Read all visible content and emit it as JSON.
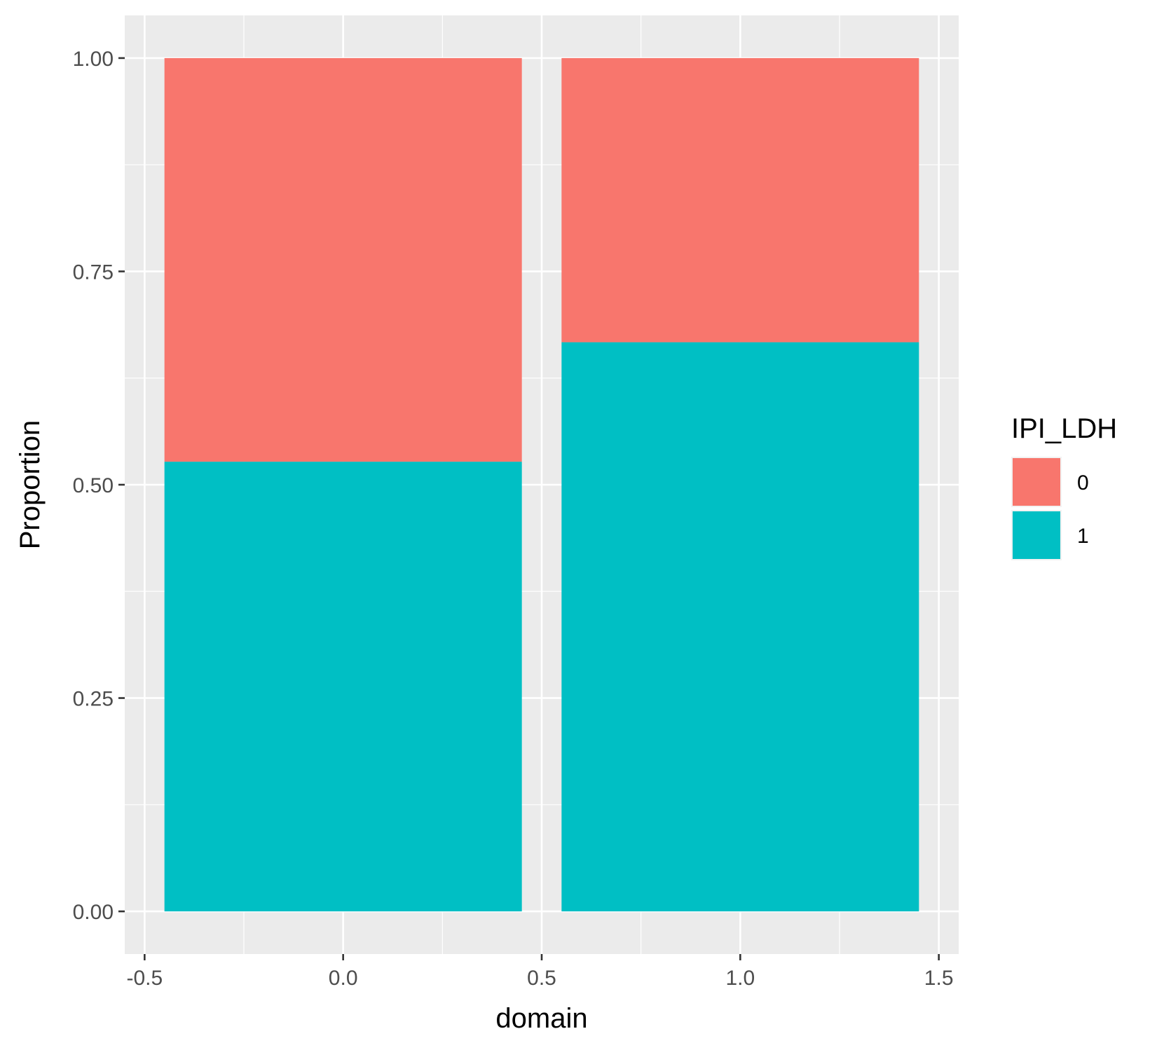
{
  "chart_data": {
    "type": "bar",
    "stacked": true,
    "title": "",
    "xlabel": "domain",
    "ylabel": "Proportion",
    "xlim": [
      -0.55,
      1.55
    ],
    "ylim": [
      -0.05,
      1.05
    ],
    "x_ticks": [
      -0.5,
      0.0,
      0.5,
      1.0,
      1.5
    ],
    "x_tick_labels": [
      "-0.5",
      "0.0",
      "0.5",
      "1.0",
      "1.5"
    ],
    "y_ticks": [
      0.0,
      0.25,
      0.5,
      0.75,
      1.0
    ],
    "y_tick_labels": [
      "0.00",
      "0.25",
      "0.50",
      "0.75",
      "1.00"
    ],
    "bar_width": 0.9,
    "x": [
      0,
      1
    ],
    "series": [
      {
        "name": "1",
        "color": "#00BFC4",
        "values": [
          0.527,
          0.667
        ]
      },
      {
        "name": "0",
        "color": "#F8766D",
        "values": [
          0.473,
          0.333
        ]
      }
    ],
    "legend": {
      "title": "IPI_LDH",
      "entries": [
        {
          "label": "0",
          "color": "#F8766D"
        },
        {
          "label": "1",
          "color": "#00BFC4"
        }
      ],
      "position": "right"
    },
    "panel_background": "#EBEBEB",
    "grid": true
  }
}
